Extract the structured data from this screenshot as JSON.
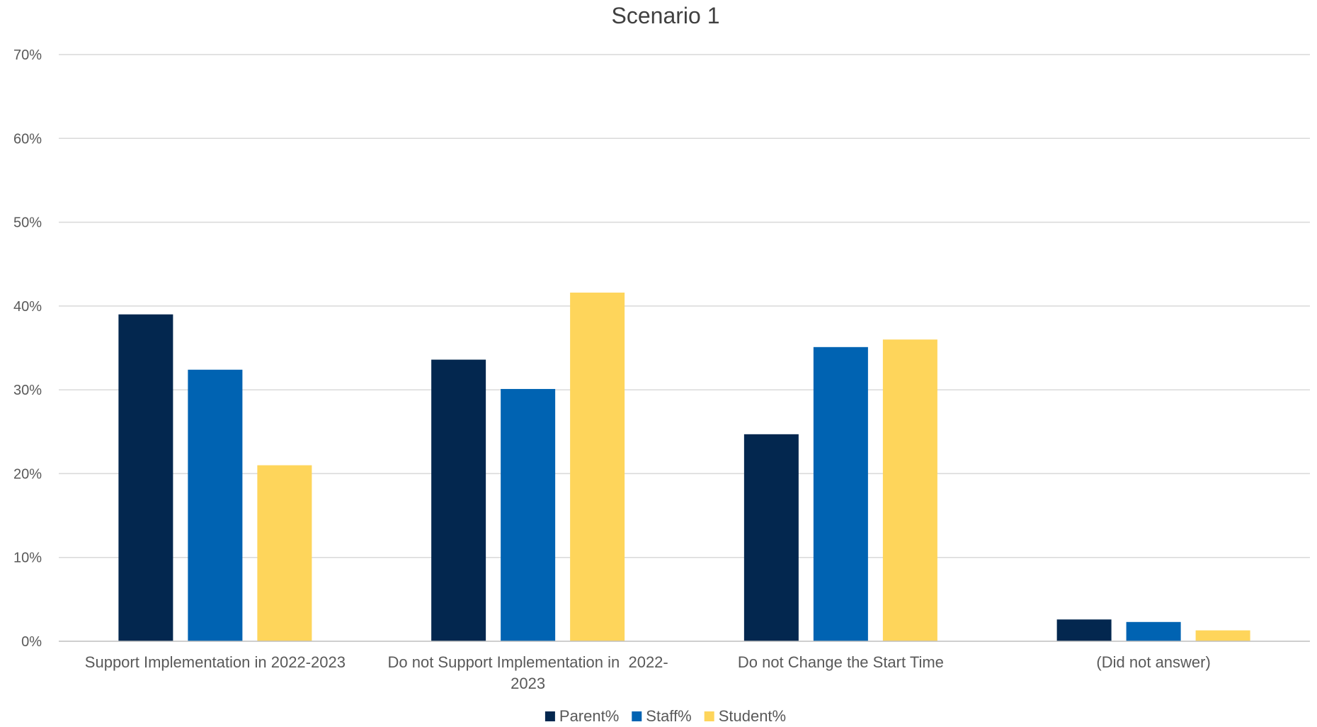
{
  "chart_data": {
    "type": "bar",
    "title": "Scenario 1",
    "xlabel": "",
    "ylabel": "",
    "categories": [
      [
        "Support Implementation in 2022-2023"
      ],
      [
        "Do not Support Implementation in  2022-",
        "2023"
      ],
      [
        "Do not Change the Start Time"
      ],
      [
        "(Did not answer)"
      ]
    ],
    "series": [
      {
        "name": "Parent%",
        "color": "#03274f",
        "values": [
          39.0,
          33.6,
          24.7,
          2.6
        ]
      },
      {
        "name": "Staff%",
        "color": "#0063b2",
        "values": [
          32.4,
          30.1,
          35.1,
          2.3
        ]
      },
      {
        "name": "Student%",
        "color": "#fed55b",
        "values": [
          21.0,
          41.6,
          36.0,
          1.3
        ]
      }
    ],
    "ylim": [
      0,
      70
    ],
    "yticks": [
      0,
      10,
      20,
      30,
      40,
      50,
      60,
      70
    ],
    "ytick_labels": [
      "0%",
      "10%",
      "20%",
      "30%",
      "40%",
      "50%",
      "60%",
      "70%"
    ],
    "grid": true,
    "legend_position": "bottom"
  }
}
